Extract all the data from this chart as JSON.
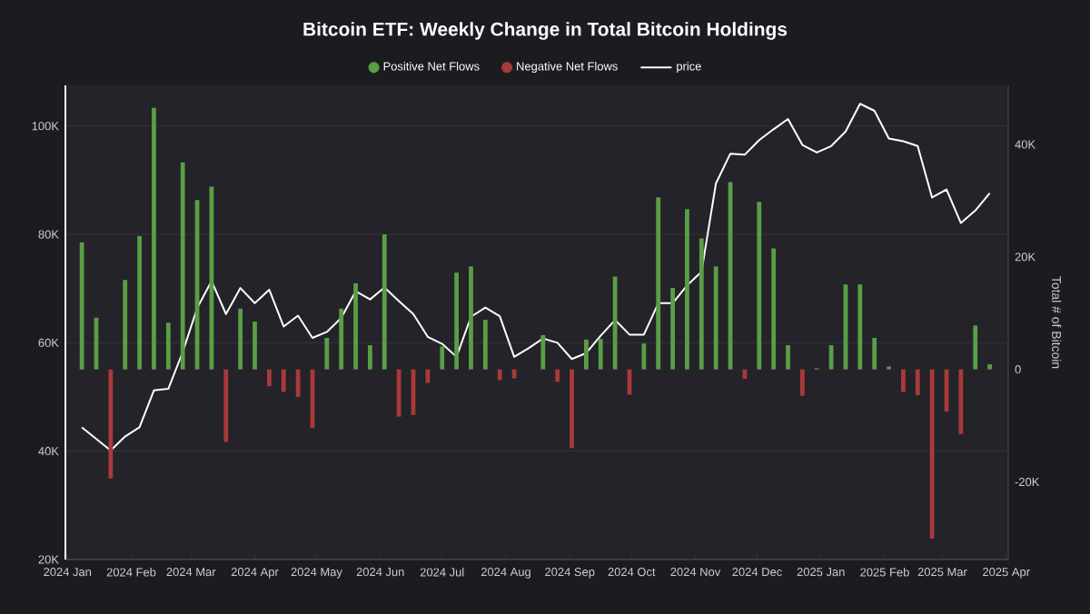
{
  "chart_data": {
    "type": "bar",
    "title": "Bitcoin ETF: Weekly Change in Total Bitcoin Holdings",
    "y2label": "Total # of Bitcoin",
    "legend": "top",
    "grid": "y",
    "xlim": [
      "2023-12-31",
      "2025-04-02"
    ],
    "xticks": [
      {
        "value": "2024-01-01",
        "label": "2024 Jan"
      },
      {
        "value": "2024-02-01",
        "label": "2024 Feb"
      },
      {
        "value": "2024-03-01",
        "label": "2024 Mar"
      },
      {
        "value": "2024-04-01",
        "label": "2024 Apr"
      },
      {
        "value": "2024-05-01",
        "label": "2024 May"
      },
      {
        "value": "2024-06-01",
        "label": "2024 Jun"
      },
      {
        "value": "2024-07-01",
        "label": "2024 Jul"
      },
      {
        "value": "2024-08-01",
        "label": "2024 Aug"
      },
      {
        "value": "2024-09-01",
        "label": "2024 Sep"
      },
      {
        "value": "2024-10-01",
        "label": "2024 Oct"
      },
      {
        "value": "2024-11-01",
        "label": "2024 Nov"
      },
      {
        "value": "2024-12-01",
        "label": "2024 Dec"
      },
      {
        "value": "2025-01-01",
        "label": "2025 Jan"
      },
      {
        "value": "2025-02-01",
        "label": "2025 Feb"
      },
      {
        "value": "2025-03-01",
        "label": "2025 Mar"
      },
      {
        "value": "2025-04-01",
        "label": "2025 Apr"
      }
    ],
    "ylim": [
      20000,
      107500
    ],
    "yticks": [
      {
        "value": 20000,
        "label": "20K"
      },
      {
        "value": 40000,
        "label": "40K"
      },
      {
        "value": 60000,
        "label": "60K"
      },
      {
        "value": 80000,
        "label": "80K"
      },
      {
        "value": 100000,
        "label": "100K"
      }
    ],
    "y2lim": [
      -33800,
      50500
    ],
    "y2ticks": [
      {
        "value": -20000,
        "label": "-20K"
      },
      0,
      {
        "value": 20000,
        "label": "20K"
      },
      {
        "value": 40000,
        "label": "40K"
      }
    ],
    "series": [
      {
        "name": "Positive Net Flows",
        "axis": "y2",
        "color": "#5a9e45",
        "x": [
          "2024-01-08",
          "2024-01-15",
          "2024-01-29",
          "2024-02-05",
          "2024-02-12",
          "2024-02-19",
          "2024-02-26",
          "2024-03-04",
          "2024-03-11",
          "2024-03-25",
          "2024-04-01",
          "2024-05-06",
          "2024-05-13",
          "2024-05-20",
          "2024-05-27",
          "2024-06-03",
          "2024-07-01",
          "2024-07-08",
          "2024-07-15",
          "2024-07-22",
          "2024-08-19",
          "2024-09-09",
          "2024-09-16",
          "2024-09-23",
          "2024-10-07",
          "2024-10-14",
          "2024-10-21",
          "2024-10-28",
          "2024-11-04",
          "2024-11-11",
          "2024-11-18",
          "2024-12-02",
          "2024-12-09",
          "2024-12-16",
          "2024-12-30",
          "2025-01-06",
          "2025-01-13",
          "2025-01-20",
          "2025-01-27",
          "2025-02-03",
          "2025-03-17",
          "2025-03-24"
        ],
        "values": [
          22600,
          9200,
          15900,
          23700,
          46500,
          8300,
          36800,
          30100,
          32500,
          10800,
          8500,
          5600,
          10800,
          15300,
          4300,
          24000,
          4100,
          17200,
          18300,
          8800,
          6100,
          5300,
          5400,
          16500,
          4600,
          30600,
          14500,
          28500,
          23300,
          18300,
          33300,
          29800,
          21500,
          4300,
          200,
          4300,
          15100,
          15100,
          5600,
          500,
          7800,
          900
        ]
      },
      {
        "name": "Negative Net Flows",
        "axis": "y2",
        "color": "#a83a3a",
        "x": [
          "2024-01-22",
          "2024-03-18",
          "2024-04-08",
          "2024-04-15",
          "2024-04-22",
          "2024-04-29",
          "2024-06-10",
          "2024-06-17",
          "2024-06-24",
          "2024-07-29",
          "2024-08-05",
          "2024-08-26",
          "2024-09-02",
          "2024-09-30",
          "2024-11-25",
          "2024-12-23",
          "2025-02-10",
          "2025-02-17",
          "2025-02-24",
          "2025-03-03",
          "2025-03-10"
        ],
        "values": [
          -19400,
          -12900,
          -3000,
          -4000,
          -4900,
          -10400,
          -8400,
          -8100,
          -2400,
          -1900,
          -1600,
          -2200,
          -14000,
          -4500,
          -1700,
          -4700,
          -4000,
          -4600,
          -30100,
          -7500,
          -11500
        ]
      },
      {
        "name": "price",
        "type": "line",
        "color": "#ffffff",
        "x": [
          "2024-01-08",
          "2024-01-22",
          "2024-01-29",
          "2024-02-05",
          "2024-02-12",
          "2024-02-19",
          "2024-02-26",
          "2024-03-04",
          "2024-03-11",
          "2024-03-18",
          "2024-03-25",
          "2024-04-01",
          "2024-04-08",
          "2024-04-15",
          "2024-04-22",
          "2024-04-29",
          "2024-05-06",
          "2024-05-13",
          "2024-05-20",
          "2024-05-27",
          "2024-06-03",
          "2024-06-10",
          "2024-06-17",
          "2024-06-24",
          "2024-07-01",
          "2024-07-08",
          "2024-07-15",
          "2024-07-22",
          "2024-07-29",
          "2024-08-05",
          "2024-08-12",
          "2024-08-19",
          "2024-08-26",
          "2024-09-02",
          "2024-09-09",
          "2024-09-16",
          "2024-09-23",
          "2024-09-30",
          "2024-10-07",
          "2024-10-14",
          "2024-10-21",
          "2024-10-28",
          "2024-11-04",
          "2024-11-11",
          "2024-11-18",
          "2024-11-25",
          "2024-12-02",
          "2024-12-09",
          "2024-12-16",
          "2024-12-23",
          "2024-12-30",
          "2025-01-06",
          "2025-01-13",
          "2025-01-20",
          "2025-01-27",
          "2025-02-03",
          "2025-02-10",
          "2025-02-17",
          "2025-02-24",
          "2025-03-03",
          "2025-03-10",
          "2025-03-17",
          "2025-03-24"
        ],
        "values": [
          44400,
          40100,
          42700,
          44400,
          51200,
          51500,
          58300,
          66400,
          71400,
          65300,
          70100,
          67300,
          69800,
          63000,
          65000,
          60900,
          62000,
          64600,
          69500,
          68000,
          70200,
          67700,
          65300,
          61100,
          59800,
          57400,
          64800,
          66500,
          64900,
          57400,
          59000,
          60800,
          60000,
          57000,
          58100,
          61300,
          64200,
          61500,
          61500,
          67300,
          67300,
          70600,
          73100,
          89400,
          94900,
          94700,
          97400,
          99400,
          101300,
          96500,
          95100,
          96300,
          99000,
          104100,
          102800,
          97700,
          97200,
          96300,
          86800,
          88300,
          82100,
          84400,
          87600
        ]
      }
    ]
  }
}
